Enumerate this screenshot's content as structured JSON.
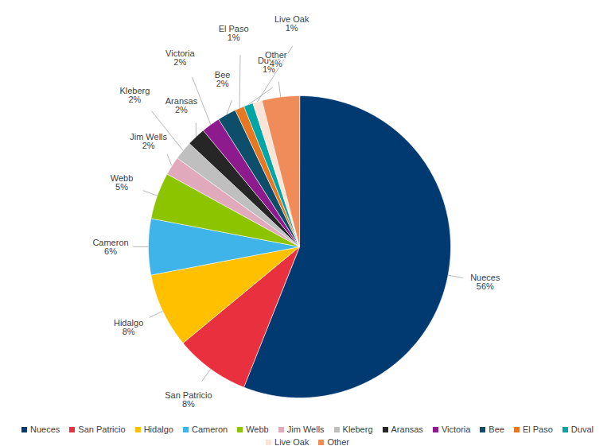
{
  "chart_data": {
    "type": "pie",
    "categories": [
      "Nueces",
      "San Patricio",
      "Hidalgo",
      "Cameron",
      "Webb",
      "Jim Wells",
      "Kleberg",
      "Aransas",
      "Victoria",
      "Bee",
      "El Paso",
      "Duval",
      "Live Oak",
      "Other"
    ],
    "values": [
      56,
      8,
      8,
      6,
      5,
      2,
      2,
      2,
      2,
      2,
      1,
      1,
      1,
      4
    ],
    "value_labels": [
      "56%",
      "8%",
      "8%",
      "6%",
      "5%",
      "2%",
      "2%",
      "2%",
      "2%",
      "2%",
      "1%",
      "1%",
      "1%",
      "4%"
    ],
    "colors": [
      "#003a70",
      "#e8303f",
      "#ffc000",
      "#3fb4e8",
      "#8dc400",
      "#e0a9bc",
      "#bfbfbf",
      "#262626",
      "#8e1b8e",
      "#0d4e6b",
      "#e87722",
      "#00a5a5",
      "#fbe3d6",
      "#f08c5a"
    ],
    "data_labels": true,
    "legend": "bottom"
  }
}
